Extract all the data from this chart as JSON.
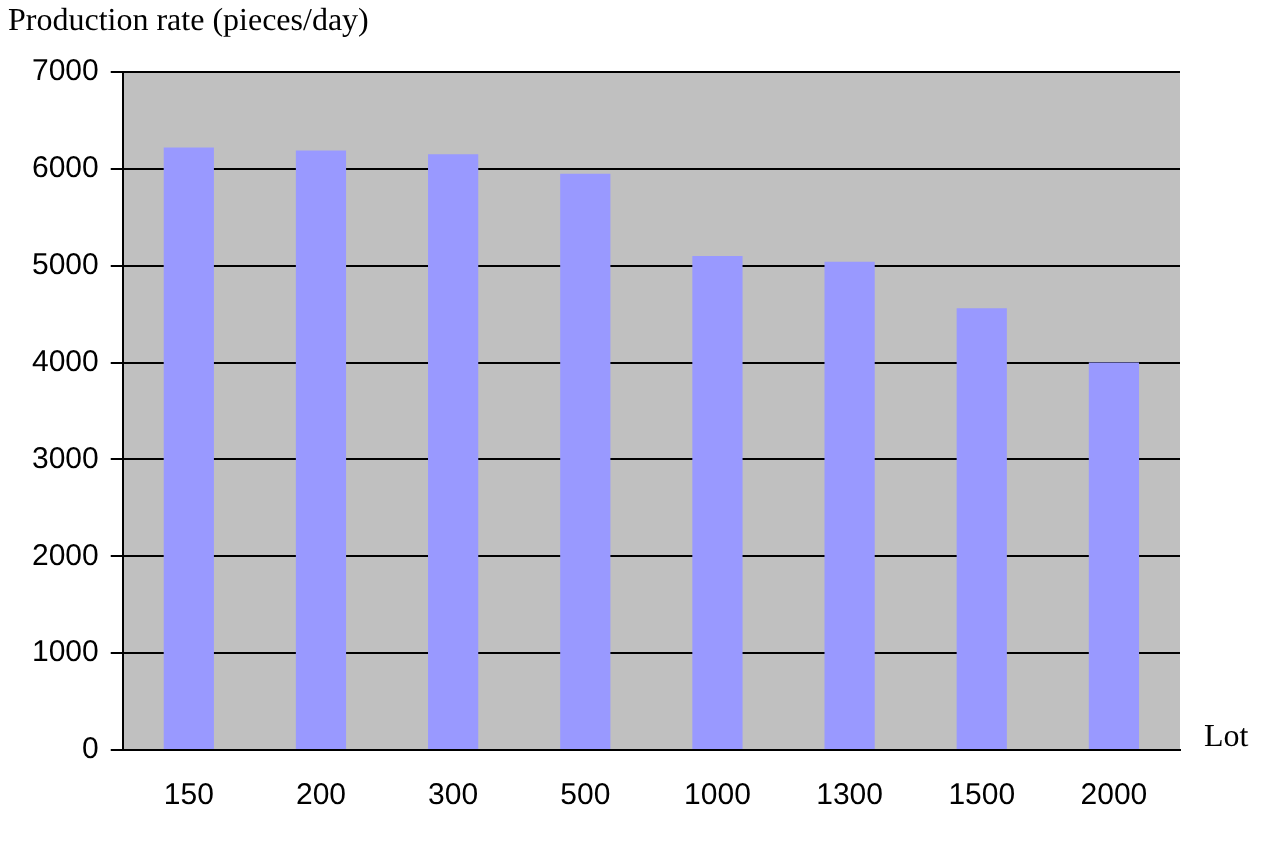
{
  "chart_data": {
    "type": "bar",
    "ylabel": "Production rate (pieces/day)",
    "xlabel": "Lot",
    "categories": [
      "150",
      "200",
      "300",
      "500",
      "1000",
      "1300",
      "1500",
      "2000"
    ],
    "values": [
      6220,
      6190,
      6150,
      5950,
      5100,
      5040,
      4560,
      4000
    ],
    "color": "#9999ff",
    "ylim": [
      0,
      7000
    ],
    "yticks": [
      0,
      1000,
      2000,
      3000,
      4000,
      5000,
      6000,
      7000
    ],
    "grid": "y",
    "legend": false
  }
}
